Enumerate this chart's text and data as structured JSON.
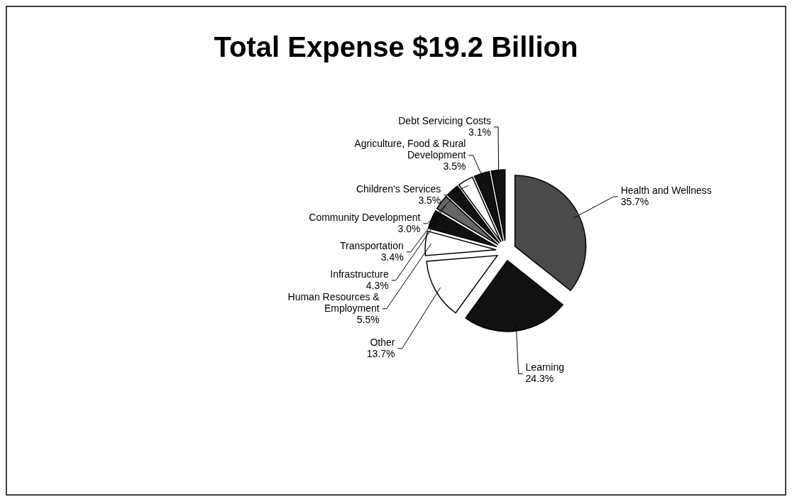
{
  "chart_data": {
    "type": "pie",
    "title": "Total Expense $19.2 Billion",
    "categories": [
      "Health and Wellness",
      "Learning",
      "Other",
      "Human Resources & Employment",
      "Infrastructure",
      "Transportation",
      "Community Development",
      "Children's Services",
      "Agriculture, Food & Rural Development",
      "Debt Servicing Costs"
    ],
    "values": [
      35.7,
      24.3,
      13.7,
      5.5,
      4.3,
      3.4,
      3.0,
      3.5,
      3.5,
      3.1
    ],
    "value_labels": [
      "35.7%",
      "24.3%",
      "13.7%",
      "5.5%",
      "4.3%",
      "3.4%",
      "3.0%",
      "3.5%",
      "3.5%",
      "3.1%"
    ],
    "colors": [
      "#4a4a4a",
      "#111111",
      "#ffffff",
      "#ffffff",
      "#111111",
      "#666666",
      "#111111",
      "#ffffff",
      "#111111",
      "#111111"
    ]
  }
}
